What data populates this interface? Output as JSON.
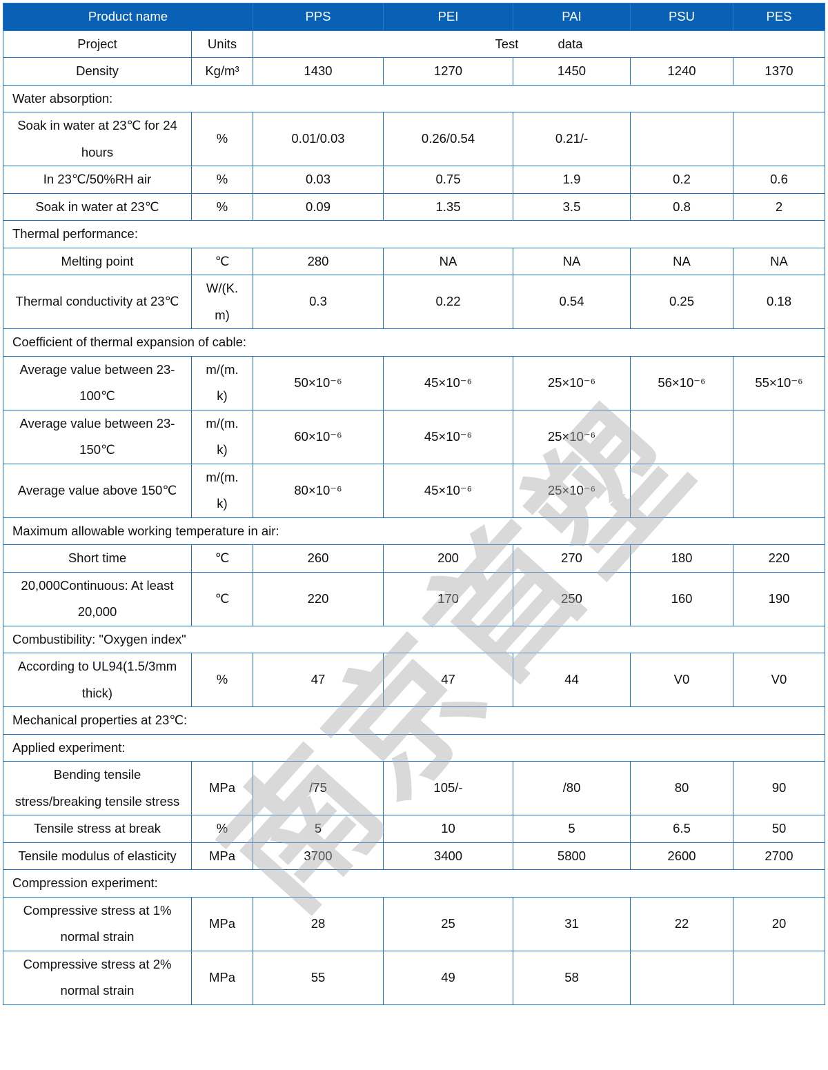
{
  "colors": {
    "header_bg": "#0861b5",
    "border": "#1d6fc0",
    "watermark": "#aaaaaa"
  },
  "header": {
    "product_name": "Product name",
    "products": [
      "PPS",
      "PEI",
      "PAI",
      "PSU",
      "PES"
    ]
  },
  "subheader": {
    "project": "Project",
    "units": "Units",
    "test_data": "Test data"
  },
  "rows": [
    {
      "type": "data",
      "label": "Density",
      "unit": "Kg/m³",
      "values": [
        "1430",
        "1270",
        "1450",
        "1240",
        "1370"
      ]
    },
    {
      "type": "section",
      "label": "Water absorption:"
    },
    {
      "type": "data",
      "label": "Soak in water at 23℃ for 24 hours",
      "unit": "%",
      "values": [
        "0.01/0.03",
        "0.26/0.54",
        "0.21/-",
        "",
        ""
      ]
    },
    {
      "type": "data",
      "label": "In 23℃/50%RH air",
      "unit": "%",
      "values": [
        "0.03",
        "0.75",
        "1.9",
        "0.2",
        "0.6"
      ]
    },
    {
      "type": "data",
      "label": "Soak in water at 23℃",
      "unit": "%",
      "values": [
        "0.09",
        "1.35",
        "3.5",
        "0.8",
        "2"
      ]
    },
    {
      "type": "section",
      "label": "Thermal performance:"
    },
    {
      "type": "data",
      "label": "Melting point",
      "unit": "℃",
      "values": [
        "280",
        "NA",
        "NA",
        "NA",
        "NA"
      ]
    },
    {
      "type": "data",
      "label": "Thermal conductivity at 23℃",
      "unit": "W/(K.m)",
      "values": [
        "0.3",
        "0.22",
        "0.54",
        "0.25",
        "0.18"
      ]
    },
    {
      "type": "section",
      "label": "Coefficient of thermal expansion of cable:"
    },
    {
      "type": "data",
      "label": "Average value between 23-100℃",
      "unit": "m/(m.k)",
      "values": [
        "50×10⁻⁶",
        "45×10⁻⁶",
        "25×10⁻⁶",
        "56×10⁻⁶",
        "55×10⁻⁶"
      ]
    },
    {
      "type": "data",
      "label": "Average value between 23-150℃",
      "unit": "m/(m.k)",
      "values": [
        "60×10⁻⁶",
        "45×10⁻⁶",
        "25×10⁻⁶",
        "",
        ""
      ]
    },
    {
      "type": "data",
      "label": "Average value above 150℃",
      "unit": "m/(m.k)",
      "values": [
        "80×10⁻⁶",
        "45×10⁻⁶",
        "25×10⁻⁶",
        "",
        ""
      ]
    },
    {
      "type": "section",
      "label": "Maximum allowable working temperature in air:"
    },
    {
      "type": "data",
      "label": "Short time",
      "unit": "℃",
      "values": [
        "260",
        "200",
        "270",
        "180",
        "220"
      ]
    },
    {
      "type": "data",
      "label": "20,000Continuous: At least 20,000",
      "unit": "℃",
      "values": [
        "220",
        "170",
        "250",
        "160",
        "190"
      ]
    },
    {
      "type": "section",
      "label": "Combustibility: \"Oxygen index\""
    },
    {
      "type": "data",
      "label": "According to UL94(1.5/3mm thick)",
      "unit": "%",
      "values": [
        "47",
        "47",
        "44",
        "V0",
        "V0"
      ]
    },
    {
      "type": "section",
      "label": "Mechanical properties at 23℃:"
    },
    {
      "type": "section",
      "label": "Applied experiment:"
    },
    {
      "type": "data",
      "label": "Bending tensile stress/breaking tensile stress",
      "unit": "MPa",
      "values": [
        "/75",
        "105/-",
        "/80",
        "80",
        "90"
      ]
    },
    {
      "type": "data",
      "label": "Tensile stress at break",
      "unit": "%",
      "values": [
        "5",
        "10",
        "5",
        "6.5",
        "50"
      ]
    },
    {
      "type": "data",
      "label": "Tensile modulus of elasticity",
      "unit": "MPa",
      "values": [
        "3700",
        "3400",
        "5800",
        "2600",
        "2700"
      ]
    },
    {
      "type": "section",
      "label": "Compression experiment:"
    },
    {
      "type": "data",
      "label": "Compressive stress at 1% normal strain",
      "unit": "MPa",
      "values": [
        "28",
        "25",
        "31",
        "22",
        "20"
      ]
    },
    {
      "type": "data",
      "label": "Compressive stress at 2% normal strain",
      "unit": "MPa",
      "values": [
        "55",
        "49",
        "58",
        "",
        ""
      ]
    }
  ],
  "watermark": "南京首塑"
}
